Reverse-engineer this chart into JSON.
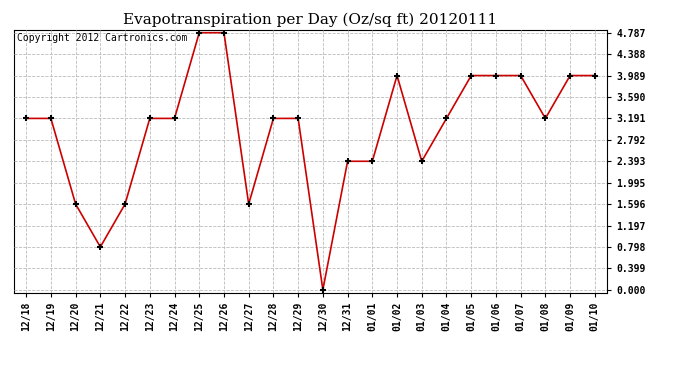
{
  "title": "Evapotranspiration per Day (Oz/sq ft) 20120111",
  "copyright": "Copyright 2012 Cartronics.com",
  "x_labels": [
    "12/18",
    "12/19",
    "12/20",
    "12/21",
    "12/22",
    "12/23",
    "12/24",
    "12/25",
    "12/26",
    "12/27",
    "12/28",
    "12/29",
    "12/30",
    "12/31",
    "01/01",
    "01/02",
    "01/03",
    "01/04",
    "01/05",
    "01/06",
    "01/07",
    "01/08",
    "01/09",
    "01/10"
  ],
  "y_values": [
    3.191,
    3.191,
    1.596,
    0.798,
    1.596,
    3.191,
    3.191,
    4.787,
    4.787,
    1.596,
    3.191,
    3.191,
    0.0,
    2.393,
    2.393,
    3.989,
    2.393,
    3.191,
    3.989,
    3.989,
    3.989,
    3.191,
    3.989,
    3.989
  ],
  "y_ticks": [
    0.0,
    0.399,
    0.798,
    1.197,
    1.596,
    1.995,
    2.393,
    2.792,
    3.191,
    3.59,
    3.989,
    4.388,
    4.787
  ],
  "line_color": "#cc0000",
  "marker": "+",
  "marker_color": "#000000",
  "marker_size": 5,
  "marker_linewidth": 1.5,
  "background_color": "#ffffff",
  "grid_color": "#bbbbbb",
  "title_fontsize": 11,
  "copyright_fontsize": 7,
  "ylim": [
    0.0,
    4.787
  ],
  "figsize": [
    6.9,
    3.75
  ],
  "dpi": 100
}
